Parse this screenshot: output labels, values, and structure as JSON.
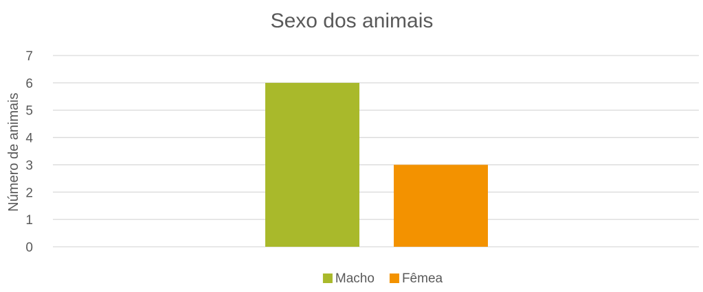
{
  "chart_data": {
    "type": "bar",
    "title": "Sexo dos animais",
    "xlabel": "",
    "ylabel": "Número de animais",
    "ylim": [
      0,
      7
    ],
    "yticks": [
      0,
      1,
      2,
      3,
      4,
      5,
      6,
      7
    ],
    "categories": [
      ""
    ],
    "series": [
      {
        "name": "Macho",
        "values": [
          6
        ],
        "color": "#A9B92B"
      },
      {
        "name": "Fêmea",
        "values": [
          3
        ],
        "color": "#F39200"
      }
    ],
    "grid": true,
    "legend_position": "bottom",
    "colors": {
      "gridline": "#D9D9D9",
      "text": "#595959"
    }
  }
}
